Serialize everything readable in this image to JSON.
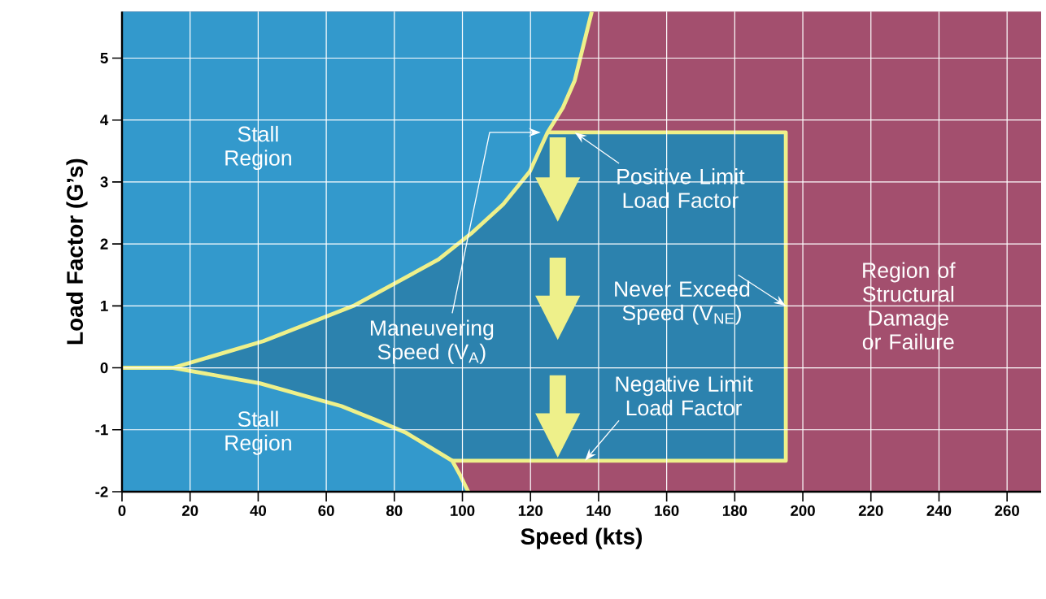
{
  "chart_data": {
    "type": "line",
    "xlabel": "Speed (kts)",
    "ylabel": "Load Factor (G’s)",
    "xlim": [
      0,
      270
    ],
    "ylim": [
      -2,
      5.75
    ],
    "xticks": [
      0,
      20,
      40,
      60,
      80,
      100,
      120,
      140,
      160,
      180,
      200,
      220,
      240,
      260
    ],
    "yticks": [
      -2,
      -1,
      0,
      1,
      2,
      3,
      4,
      5
    ],
    "grid": true,
    "series": [
      {
        "color": "#eef08a",
        "x": [
          0,
          15,
          41.5,
          68,
          93,
          102.6,
          112,
          119.8,
          125,
          129.5,
          133,
          138
        ],
        "values": [
          0,
          0,
          0.43,
          1.0,
          1.75,
          2.17,
          2.64,
          3.17,
          3.8,
          4.2,
          4.64,
          5.75
        ]
      },
      {
        "color": "#eef08a",
        "x": [
          0,
          15,
          40.5,
          64.5,
          74,
          83.5,
          91,
          97,
          99.5,
          101.7
        ],
        "values": [
          0,
          0,
          -0.25,
          -0.62,
          -0.83,
          -1.05,
          -1.3,
          -1.5,
          -1.75,
          -2
        ]
      },
      {
        "color": "#eef08a",
        "x": [
          125,
          195,
          195,
          97
        ],
        "values": [
          3.8,
          3.8,
          -1.5,
          -1.5
        ]
      }
    ],
    "annotations": [
      "Stall Region",
      "Stall Region",
      "Maneuvering Speed (V$_{A}$)",
      {
        "text": "Positive Limit Load Factor",
        "x": 133,
        "y": 3.8
      },
      {
        "text": "Never Exceed Speed (V$_{NE}$)",
        "x": 195,
        "y": 1
      },
      {
        "text": "Negative Limit Load Factor",
        "x": 136,
        "y": -1.5
      },
      "Region of Structural Damage or Failure"
    ]
  }
}
